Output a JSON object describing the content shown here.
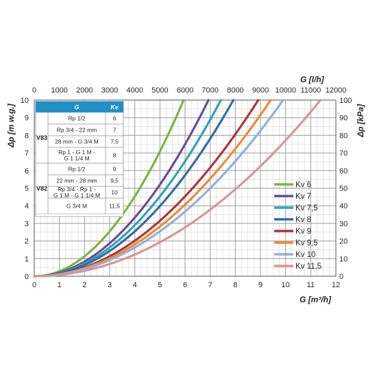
{
  "chart_data": {
    "type": "line",
    "xlabel_bottom": "G [m³/h]",
    "xlabel_top": "G [l/h]",
    "ylabel_left": "Δp [m w.g.]",
    "ylabel_right": "Δp [kPa]",
    "xlim": [
      0,
      12
    ],
    "ylim": [
      0,
      10
    ],
    "x_ticks": [
      "0",
      "1",
      "2",
      "3",
      "4",
      "5",
      "6",
      "7",
      "8",
      "9",
      "10",
      "11",
      "12"
    ],
    "x_top_ticks": [
      "0",
      "1000",
      "2000",
      "3000",
      "4000",
      "5000",
      "6000",
      "7000",
      "8000",
      "9000",
      "10000",
      "11000",
      "12000"
    ],
    "y_ticks": [
      "0",
      "1",
      "2",
      "3",
      "4",
      "5",
      "6",
      "7",
      "8",
      "9",
      "10"
    ],
    "y_right_ticks": [
      "0",
      "10",
      "20",
      "30",
      "40",
      "50",
      "60",
      "70",
      "80",
      "90",
      "100"
    ],
    "grid": true,
    "legend_position": "right",
    "series": [
      {
        "name": "Kv 6",
        "kv": 6,
        "color": "#7cb342"
      },
      {
        "name": "Kv 7",
        "kv": 7,
        "color": "#6a4a9c"
      },
      {
        "name": "Kv 7,5",
        "kv": 7.5,
        "color": "#2fa3b5"
      },
      {
        "name": "Kv 8",
        "kv": 8,
        "color": "#2e6da4"
      },
      {
        "name": "Kv 9",
        "kv": 9,
        "color": "#b0333a"
      },
      {
        "name": "Kv 9,5",
        "kv": 9.5,
        "color": "#ee8a2e"
      },
      {
        "name": "Kv 10",
        "kv": 10,
        "color": "#8fb1d8"
      },
      {
        "name": "Kv 11,5",
        "kv": 11.5,
        "color": "#d99494"
      }
    ],
    "table": {
      "header": [
        "G",
        "Kv"
      ],
      "groups": [
        {
          "name": "V83",
          "rows": [
            {
              "g": "Rp 1/2",
              "kv": "6"
            },
            {
              "g": "Rp 3/4 - 22 mm",
              "kv": "7"
            },
            {
              "g": "28 mm - G 3/4 M",
              "kv": "7,5"
            },
            {
              "g": "Rp 1 - G 1 M -\nG 1 1/4 M",
              "kv": "8"
            }
          ]
        },
        {
          "name": "V82",
          "rows": [
            {
              "g": "Rp 1/2",
              "kv": "9"
            },
            {
              "g": "22 mm - 28 mm",
              "kv": "9,5"
            },
            {
              "g": "Rp 3/4 - Rp 1 -\nG 1 M - G 1 1/4 M",
              "kv": "10"
            },
            {
              "g": "G 3/4 M",
              "kv": "11,5"
            }
          ]
        }
      ]
    }
  }
}
